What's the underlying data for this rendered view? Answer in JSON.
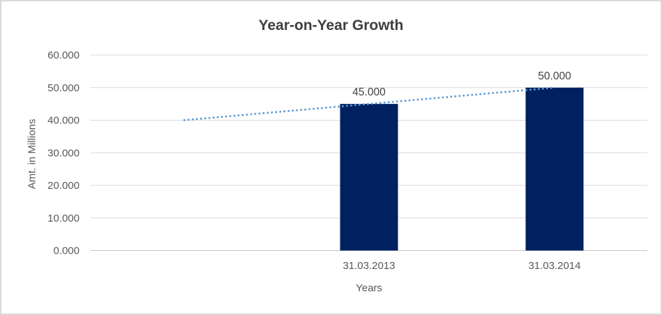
{
  "chart_data": {
    "type": "bar",
    "title": "Year-on-Year Growth",
    "xlabel": "Years",
    "ylabel": "Amt. in Millions",
    "categories": [
      "31.03.2013",
      "31.03.2014"
    ],
    "values": [
      45.0,
      50.0
    ],
    "data_labels": [
      "45.000",
      "50.000"
    ],
    "ylim": [
      0,
      60
    ],
    "y_tick_labels": [
      "0.000",
      "10.000",
      "20.000",
      "30.000",
      "40.000",
      "50.000",
      "60.000"
    ],
    "grid": true,
    "legend": "none",
    "lead_empty_slots": 1,
    "bar_color": "#002060",
    "gridline_color": "#D9D9D9",
    "axis_line_color": "#C6C6C6",
    "tick_label_color": "#595959",
    "data_label_color": "#404040",
    "trendline": {
      "type": "linear",
      "style": "dotted",
      "color": "#5B9BD5",
      "start_value": 40.0,
      "end_value": 50.0
    }
  }
}
